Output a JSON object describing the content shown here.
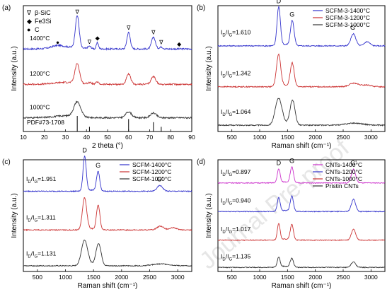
{
  "figure": {
    "watermark": "Journal Pre-proof"
  },
  "chart_data": [
    {
      "panel": "(a)",
      "type": "line",
      "xlabel": "2 theta (°)",
      "ylabel": "Intensity (a.u.)",
      "xlim": [
        10,
        90
      ],
      "xticks": [
        10,
        20,
        30,
        40,
        50,
        60,
        70,
        80,
        90
      ],
      "legend": [
        {
          "symbol": "∇",
          "label": "β-SiC"
        },
        {
          "symbol": "◆",
          "label": "Fe3Si"
        },
        {
          "symbol": "●",
          "label": "C"
        }
      ],
      "series": [
        {
          "name": "1400°C",
          "color": "#3333cc",
          "offset": 2.1,
          "peaks": [
            [
              26,
              0.05,
              2.5
            ],
            [
              35.6,
              0.82,
              0.9
            ],
            [
              41.4,
              0.06,
              0.8
            ],
            [
              45.2,
              0.16,
              0.5
            ],
            [
              60,
              0.42,
              0.8
            ],
            [
              71.8,
              0.3,
              0.9
            ],
            [
              75.5,
              0.05,
              0.8
            ]
          ],
          "markers": [
            {
              "x": 26.3,
              "label": "●"
            },
            {
              "x": 35.6,
              "label": "∇"
            },
            {
              "x": 41.4,
              "label": "∇"
            },
            {
              "x": 45.2,
              "label": "◆"
            },
            {
              "x": 60,
              "label": "∇"
            },
            {
              "x": 71.8,
              "label": "∇"
            },
            {
              "x": 75.5,
              "label": "∇"
            },
            {
              "x": 84,
              "label": "◆"
            }
          ]
        },
        {
          "name": "1200°C",
          "color": "#cc3333",
          "offset": 1.2,
          "peaks": [
            [
              35.6,
              0.5,
              1.1
            ],
            [
              41.4,
              0.04,
              1
            ],
            [
              45.1,
              0.06,
              0.6
            ],
            [
              60,
              0.26,
              1
            ],
            [
              71.8,
              0.2,
              1.1
            ]
          ]
        },
        {
          "name": "1000°C",
          "color": "#333333",
          "offset": 0.35,
          "peaks": [
            [
              35.6,
              0.38,
              1.6
            ],
            [
              60,
              0.15,
              1.4
            ],
            [
              71.8,
              0.12,
              1.4
            ]
          ]
        }
      ],
      "reference": {
        "name": "PDF#73-1708",
        "lines": [
          [
            35.6,
            1
          ],
          [
            41.4,
            0.3
          ],
          [
            60,
            0.8
          ],
          [
            71.8,
            0.6
          ],
          [
            75.5,
            0.3
          ]
        ]
      }
    },
    {
      "panel": "(b)",
      "type": "line",
      "xlabel": "Raman shift (cm⁻¹)",
      "ylabel": "Intensity (a.u.)",
      "xlim": [
        250,
        3250
      ],
      "xticks": [
        500,
        1000,
        1500,
        2000,
        2500,
        3000
      ],
      "legend_position": "top-right",
      "series": [
        {
          "name": "SCFM-3-1400°C",
          "color": "#3333cc",
          "ratio": "ID/IG=1.610",
          "offset": 2.45,
          "peaks": [
            [
              1342,
              1.1,
              30
            ],
            [
              1582,
              0.68,
              30
            ],
            [
              2683,
              0.34,
              45
            ],
            [
              2930,
              0.12,
              50
            ],
            [
              1620,
              0.1,
              25
            ]
          ]
        },
        {
          "name": "SCFM-3-1200°C",
          "color": "#cc3333",
          "ratio": "ID/IG=1.342",
          "offset": 1.28,
          "peaks": [
            [
              1340,
              0.9,
              38
            ],
            [
              1585,
              0.67,
              35
            ],
            [
              2690,
              0.1,
              80
            ],
            [
              2920,
              0.05,
              80
            ]
          ]
        },
        {
          "name": "SCFM-3-1000°C",
          "color": "#333333",
          "ratio": "ID/IG=1.064",
          "offset": 0.18,
          "peaks": [
            [
              1340,
              0.75,
              60
            ],
            [
              1590,
              0.7,
              45
            ],
            [
              2700,
              0.06,
              150
            ]
          ]
        }
      ],
      "peak_labels": [
        {
          "x": 1342,
          "label": "D"
        },
        {
          "x": 1582,
          "label": "G"
        },
        {
          "x": 2683,
          "label": "G'"
        }
      ]
    },
    {
      "panel": "(c)",
      "type": "line",
      "xlabel": "Raman shift (cm⁻¹)",
      "ylabel": "Intensity (a.u.)",
      "xlim": [
        250,
        3250
      ],
      "xticks": [
        500,
        1000,
        1500,
        2000,
        2500,
        3000
      ],
      "legend_position": "top-right",
      "series": [
        {
          "name": "SCFM-1400°C",
          "color": "#3333cc",
          "ratio": "ID/IG=1.951",
          "offset": 2.55,
          "peaks": [
            [
              1342,
              1.1,
              28
            ],
            [
              1582,
              0.62,
              28
            ],
            [
              2683,
              0.18,
              50
            ]
          ]
        },
        {
          "name": "SCFM-1200°C",
          "color": "#cc3333",
          "ratio": "ID/IG=1.311",
          "offset": 1.32,
          "peaks": [
            [
              1340,
              1.0,
              38
            ],
            [
              1583,
              0.78,
              30
            ],
            [
              2690,
              0.12,
              60
            ],
            [
              2920,
              0.07,
              60
            ]
          ]
        },
        {
          "name": "SCFM-1000°C",
          "color": "#333333",
          "ratio": "ID/IG=1.131",
          "offset": 0.18,
          "peaks": [
            [
              1340,
              0.8,
              55
            ],
            [
              1590,
              0.7,
              45
            ],
            [
              2700,
              0.06,
              150
            ]
          ]
        }
      ],
      "peak_labels": [
        {
          "x": 1342,
          "label": "D"
        },
        {
          "x": 1582,
          "label": "G"
        },
        {
          "x": 2683,
          "label": "G'"
        }
      ]
    },
    {
      "panel": "(d)",
      "type": "line",
      "xlabel": "Raman shift (cm⁻¹)",
      "ylabel": "Intensity (a.u.)",
      "xlim": [
        250,
        3250
      ],
      "xticks": [
        500,
        1000,
        1500,
        2000,
        2500,
        3000
      ],
      "legend_position": "top-right",
      "series": [
        {
          "name": "CNTs-1400°C",
          "color": "#cc33cc",
          "ratio": "ID/IG=0.897",
          "offset": 3.25,
          "peaks": [
            [
              1342,
              0.5,
              25
            ],
            [
              1578,
              0.58,
              28
            ],
            [
              2685,
              0.5,
              38
            ]
          ]
        },
        {
          "name": "CNTs-1200°C",
          "color": "#3333cc",
          "ratio": "ID/IG=0.940",
          "offset": 2.2,
          "peaks": [
            [
              1342,
              0.5,
              25
            ],
            [
              1578,
              0.55,
              28
            ],
            [
              2685,
              0.45,
              38
            ]
          ]
        },
        {
          "name": "CNTs-1000°C",
          "color": "#cc3333",
          "ratio": "ID/IG=1.017",
          "offset": 1.15,
          "peaks": [
            [
              1342,
              0.58,
              25
            ],
            [
              1578,
              0.56,
              28
            ],
            [
              2685,
              0.4,
              38
            ]
          ]
        },
        {
          "name": "Pristin CNTs",
          "color": "#333333",
          "ratio": "ID/IG=1.135",
          "offset": 0.15,
          "peaks": [
            [
              1342,
              0.36,
              25
            ],
            [
              1578,
              0.32,
              28
            ],
            [
              2685,
              0.2,
              40
            ]
          ]
        }
      ],
      "peak_labels": [
        {
          "x": 1342,
          "label": "D"
        },
        {
          "x": 1578,
          "label": "G"
        },
        {
          "x": 2685,
          "label": "G'"
        }
      ]
    }
  ]
}
